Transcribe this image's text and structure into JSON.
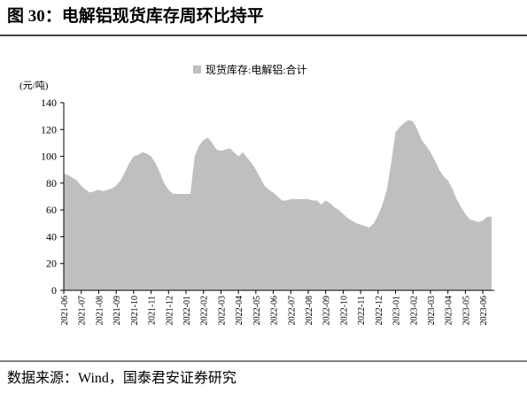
{
  "chart_data": {
    "type": "area",
    "title": "图 30：电解铝现货库存周环比持平",
    "y_label": "(元/吨)",
    "source": "数据来源：Wind，国泰君安证券研究",
    "categories": [
      "2021-06",
      null,
      null,
      null,
      "2021-07",
      null,
      null,
      null,
      "2021-08",
      null,
      null,
      null,
      "2021-09",
      null,
      null,
      null,
      "2021-10",
      null,
      null,
      null,
      "2021-11",
      null,
      null,
      null,
      "2021-12",
      null,
      null,
      null,
      "2022-01",
      null,
      null,
      null,
      "2022-02",
      null,
      null,
      null,
      "2022-03",
      null,
      null,
      null,
      "2022-04",
      null,
      null,
      null,
      "2022-05",
      null,
      null,
      null,
      "2022-06",
      null,
      null,
      null,
      "2022-07",
      null,
      null,
      null,
      "2022-08",
      null,
      null,
      null,
      "2022-09",
      null,
      null,
      null,
      "2022-10",
      null,
      null,
      null,
      "2022-11",
      null,
      null,
      null,
      "2022-12",
      null,
      null,
      null,
      "2023-01",
      null,
      null,
      null,
      "2023-02",
      null,
      null,
      null,
      "2023-03",
      null,
      null,
      null,
      "2023-04",
      null,
      null,
      null,
      "2023-05",
      null,
      null,
      null,
      "2023-06",
      null,
      null
    ],
    "series": [
      {
        "name": "现货库存:电解铝:合计",
        "color": "#bfbfbf",
        "values": [
          87,
          86,
          84,
          82,
          78,
          75,
          73,
          74,
          75,
          74,
          75,
          76,
          78,
          82,
          88,
          95,
          100,
          101,
          103,
          102,
          100,
          95,
          88,
          80,
          75,
          72,
          72,
          72,
          72,
          72,
          100,
          108,
          112,
          114,
          110,
          105,
          104,
          105,
          106,
          103,
          100,
          103,
          99,
          95,
          90,
          84,
          78,
          75,
          73,
          70,
          67,
          67,
          68,
          68,
          68,
          68,
          68,
          67,
          67,
          64,
          67,
          65,
          62,
          60,
          57,
          54,
          52,
          50,
          49,
          48,
          47,
          50,
          56,
          64,
          75,
          95,
          118,
          122,
          125,
          127,
          126,
          120,
          112,
          108,
          103,
          97,
          90,
          85,
          82,
          76,
          68,
          62,
          57,
          53,
          52,
          51,
          52,
          55,
          55
        ]
      }
    ],
    "ylim": [
      0,
      140
    ],
    "yticks": [
      0,
      20,
      40,
      60,
      80,
      100,
      120,
      140
    ]
  }
}
